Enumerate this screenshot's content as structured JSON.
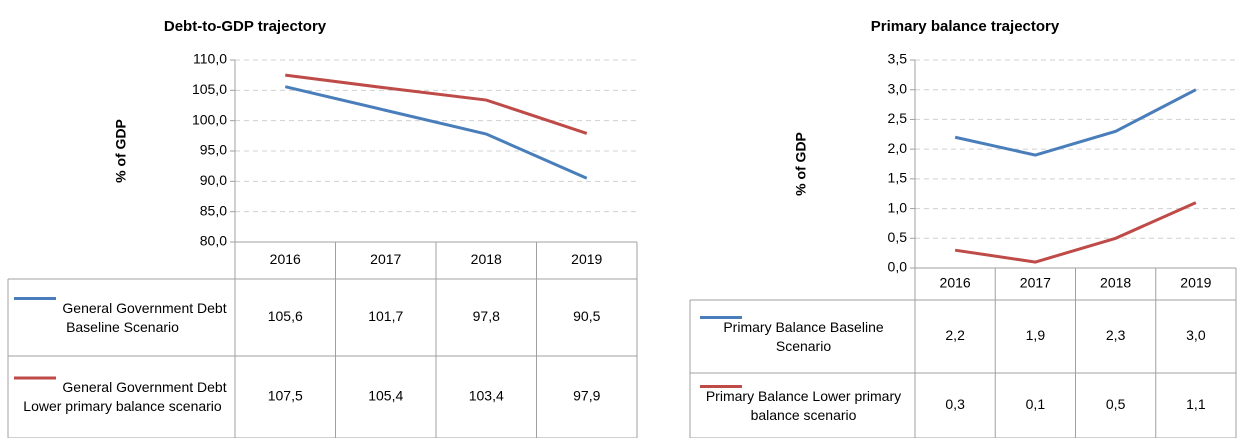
{
  "chart_data": [
    {
      "type": "line",
      "title": "Debt-to-GDP trajectory",
      "y_label": "% of GDP",
      "categories": [
        "2016",
        "2017",
        "2018",
        "2019"
      ],
      "series": [
        {
          "name": "General Government Debt Baseline Scenario",
          "color": "#4a7ebb",
          "values": [
            105.6,
            101.7,
            97.8,
            90.5
          ],
          "value_labels": [
            "105,6",
            "101,7",
            "97,8",
            "90,5"
          ]
        },
        {
          "name": "General Government Debt Lower primary balance scenario",
          "color": "#be4b48",
          "values": [
            107.5,
            105.4,
            103.4,
            97.9
          ],
          "value_labels": [
            "107,5",
            "105,4",
            "103,4",
            "97,9"
          ]
        }
      ],
      "ylim": [
        80,
        110
      ],
      "yticks": [
        {
          "value": 80,
          "label": "80,0"
        },
        {
          "value": 85,
          "label": "85,0"
        },
        {
          "value": 90,
          "label": "90,0"
        },
        {
          "value": 95,
          "label": "95,0"
        },
        {
          "value": 100,
          "label": "100,0"
        },
        {
          "value": 105,
          "label": "105,0"
        },
        {
          "value": 110,
          "label": "110,0"
        }
      ],
      "grid": true
    },
    {
      "type": "line",
      "title": "Primary balance trajectory",
      "y_label": "% of GDP",
      "categories": [
        "2016",
        "2017",
        "2018",
        "2019"
      ],
      "series": [
        {
          "name": "Primary Balance Baseline Scenario",
          "color": "#4a7ebb",
          "values": [
            2.2,
            1.9,
            2.3,
            3.0
          ],
          "value_labels": [
            "2,2",
            "1,9",
            "2,3",
            "3,0"
          ]
        },
        {
          "name": "Primary Balance Lower primary balance scenario",
          "color": "#be4b48",
          "values": [
            0.3,
            0.1,
            0.5,
            1.1
          ],
          "value_labels": [
            "0,3",
            "0,1",
            "0,5",
            "1,1"
          ]
        }
      ],
      "ylim": [
        0,
        3.5
      ],
      "yticks": [
        {
          "value": 0,
          "label": "0,0"
        },
        {
          "value": 0.5,
          "label": "0,5"
        },
        {
          "value": 1,
          "label": "1,0"
        },
        {
          "value": 1.5,
          "label": "1,5"
        },
        {
          "value": 2,
          "label": "2,0"
        },
        {
          "value": 2.5,
          "label": "2,5"
        },
        {
          "value": 3,
          "label": "3,0"
        },
        {
          "value": 3.5,
          "label": "3,5"
        }
      ],
      "grid": true
    }
  ]
}
